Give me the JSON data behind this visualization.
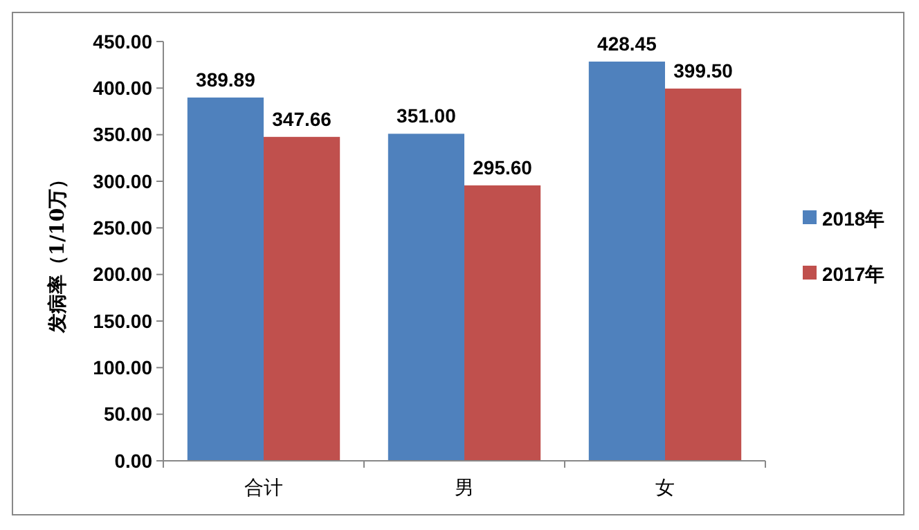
{
  "chart_data": {
    "type": "bar",
    "ylabel": "发病率（1/10万）",
    "categories": [
      "合计",
      "男",
      "女"
    ],
    "series": [
      {
        "name": "2018年",
        "color": "#4f81bd",
        "values": [
          389.89,
          351.0,
          428.45
        ],
        "value_labels": [
          "389.89",
          "351.00",
          "428.45"
        ]
      },
      {
        "name": "2017年",
        "color": "#c0504d",
        "values": [
          347.66,
          295.6,
          399.5
        ],
        "value_labels": [
          "347.66",
          "295.60",
          "399.50"
        ]
      }
    ],
    "ylim": [
      0,
      450
    ],
    "yticks": [
      {
        "value": 0,
        "label": "0.00"
      },
      {
        "value": 50,
        "label": "50.00"
      },
      {
        "value": 100,
        "label": "100.00"
      },
      {
        "value": 150,
        "label": "150.00"
      },
      {
        "value": 200,
        "label": "200.00"
      },
      {
        "value": 250,
        "label": "250.00"
      },
      {
        "value": 300,
        "label": "300.00"
      },
      {
        "value": 350,
        "label": "350.00"
      },
      {
        "value": 400,
        "label": "400.00"
      },
      {
        "value": 450,
        "label": "450.00"
      }
    ],
    "grid": false,
    "legend": "right"
  }
}
